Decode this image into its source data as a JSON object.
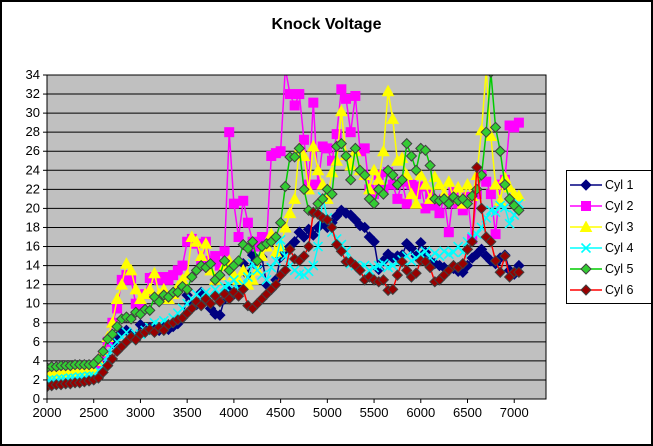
{
  "chart_data": {
    "type": "line",
    "title": "Knock Voltage",
    "xlabel": "",
    "ylabel": "",
    "xlim": [
      2000,
      7340
    ],
    "ylim": [
      0,
      34
    ],
    "x_ticks": [
      2000,
      2500,
      3000,
      3500,
      4000,
      4500,
      5000,
      5500,
      6000,
      6500,
      7000
    ],
    "y_ticks": [
      0,
      2,
      4,
      6,
      8,
      10,
      12,
      14,
      16,
      18,
      20,
      22,
      24,
      26,
      28,
      30,
      32,
      34
    ],
    "grid": "horizontal",
    "grid_color": "#000000",
    "plot_bg": "#C0C0C0",
    "axis_color": "#000000",
    "legend_position": "right",
    "x": [
      2000,
      2050,
      2100,
      2150,
      2200,
      2250,
      2300,
      2350,
      2400,
      2450,
      2500,
      2550,
      2600,
      2650,
      2700,
      2750,
      2800,
      2850,
      2900,
      2950,
      3000,
      3050,
      3100,
      3150,
      3200,
      3250,
      3300,
      3350,
      3400,
      3450,
      3500,
      3550,
      3600,
      3650,
      3700,
      3750,
      3800,
      3850,
      3900,
      3950,
      4000,
      4050,
      4100,
      4150,
      4200,
      4250,
      4300,
      4350,
      4400,
      4450,
      4500,
      4550,
      4600,
      4650,
      4700,
      4750,
      4800,
      4850,
      4900,
      4950,
      5000,
      5050,
      5100,
      5150,
      5200,
      5250,
      5300,
      5350,
      5400,
      5450,
      5500,
      5550,
      5600,
      5650,
      5700,
      5750,
      5800,
      5850,
      5900,
      5950,
      6000,
      6050,
      6100,
      6150,
      6200,
      6250,
      6300,
      6350,
      6400,
      6450,
      6500,
      6550,
      6600,
      6650,
      6700,
      6750,
      6800,
      6850,
      6900,
      6950,
      7000,
      7050
    ],
    "series": [
      {
        "name": "Cyl 1",
        "line_color": "#000080",
        "marker": "diamond",
        "marker_color": "#000080",
        "marker_stroke": "#000080",
        "values": [
          1.8,
          1.9,
          1.9,
          2.0,
          2.0,
          2.1,
          2.1,
          2.2,
          2.2,
          2.3,
          2.5,
          3.0,
          3.6,
          4.3,
          5.8,
          6.5,
          7.0,
          7.2,
          6.8,
          6.5,
          7.8,
          7.0,
          7.5,
          7.3,
          7.2,
          7.5,
          7.3,
          7.6,
          7.9,
          8.5,
          10.9,
          10.0,
          9.9,
          11.2,
          10.5,
          9.5,
          8.9,
          8.8,
          10.5,
          11.4,
          11.0,
          12.0,
          14.2,
          13.0,
          15.1,
          13.9,
          14.9,
          12.0,
          11.5,
          12.5,
          14.9,
          15.5,
          16.0,
          16.5,
          17.5,
          17.0,
          17.8,
          17.2,
          18.0,
          18.5,
          18.0,
          18.5,
          19.2,
          19.8,
          19.5,
          19.3,
          18.8,
          18.2,
          18.0,
          17.0,
          16.5,
          13.6,
          14.5,
          15.2,
          14.8,
          15.0,
          15.1,
          16.3,
          15.8,
          15.0,
          16.4,
          15.4,
          14.5,
          14.2,
          14.0,
          13.8,
          13.5,
          13.7,
          13.4,
          13.3,
          14.0,
          14.8,
          15.2,
          15.7,
          15.0,
          14.5,
          14.2,
          14.8,
          15.1,
          13.5,
          13.1,
          14.0
        ]
      },
      {
        "name": "Cyl 2",
        "line_color": "#FF00FF",
        "marker": "square",
        "marker_color": "#FF00FF",
        "marker_stroke": "#FF00FF",
        "values": [
          2.3,
          2.4,
          2.4,
          2.5,
          2.5,
          2.6,
          2.6,
          2.7,
          2.7,
          2.8,
          2.8,
          3.5,
          4.5,
          6.0,
          8.0,
          9.5,
          12.5,
          13.0,
          12.5,
          10.0,
          9.5,
          11.0,
          12.7,
          12.8,
          12.5,
          12.8,
          12.5,
          13.0,
          13.5,
          14.0,
          16.5,
          16.8,
          16.3,
          14.0,
          16.5,
          14.5,
          15.0,
          14.0,
          15.5,
          28.0,
          20.5,
          17.0,
          20.8,
          18.5,
          16.5,
          16.0,
          17.0,
          16.5,
          25.5,
          25.8,
          26.0,
          34.7,
          32.0,
          30.8,
          32.0,
          27.2,
          22.5,
          31.1,
          22.5,
          26.5,
          26.3,
          25.0,
          27.8,
          32.5,
          31.5,
          28.0,
          31.8,
          26.0,
          26.3,
          22.0,
          21.5,
          23.5,
          22.0,
          23.8,
          22.5,
          21.0,
          22.8,
          20.5,
          22.5,
          21.5,
          22.3,
          20.0,
          21.5,
          20.3,
          19.5,
          21.0,
          17.5,
          21.7,
          20.5,
          19.8,
          21.2,
          16.8,
          21.5,
          23.5,
          22.8,
          21.5,
          17.3,
          22.5,
          23.0,
          28.7,
          28.5,
          29.0
        ]
      },
      {
        "name": "Cyl 3",
        "line_color": "#FFFF00",
        "marker": "triangle",
        "marker_color": "#FFFF00",
        "marker_stroke": "#FFFF00",
        "values": [
          2.6,
          2.6,
          2.7,
          2.7,
          2.8,
          2.8,
          2.9,
          2.9,
          3.0,
          3.0,
          3.0,
          4.0,
          5.0,
          6.5,
          8.0,
          10.5,
          12.0,
          14.2,
          13.5,
          11.5,
          10.5,
          11.0,
          11.5,
          13.2,
          11.0,
          11.5,
          10.5,
          11.0,
          11.8,
          12.5,
          13.0,
          17.0,
          16.5,
          15.0,
          16.3,
          13.5,
          12.5,
          13.0,
          14.0,
          14.5,
          13.0,
          12.5,
          13.5,
          12.0,
          12.5,
          13.5,
          15.0,
          16.0,
          17.3,
          15.4,
          16.0,
          18.0,
          19.5,
          21.0,
          26.3,
          25.5,
          22.0,
          26.5,
          24.0,
          22.5,
          21.0,
          23.8,
          25.0,
          30.2,
          25.6,
          24.5,
          26.0,
          24.0,
          23.5,
          22.0,
          24.0,
          23.0,
          26.0,
          32.3,
          29.4,
          25.0,
          25.3,
          23.5,
          21.5,
          20.5,
          23.5,
          22.5,
          21.0,
          23.3,
          22.5,
          21.5,
          22.8,
          21.0,
          22.2,
          20.5,
          22.5,
          21.3,
          23.5,
          28.2,
          34.5,
          27.6,
          22.5,
          20.8,
          23.2,
          22.2,
          21.5,
          21.3
        ]
      },
      {
        "name": "Cyl 4",
        "line_color": "#00FFFF",
        "marker": "x",
        "marker_color": "#00FFFF",
        "marker_stroke": "#00FFFF",
        "values": [
          1.9,
          2.0,
          2.0,
          2.1,
          2.1,
          2.2,
          2.2,
          2.3,
          2.3,
          2.4,
          2.4,
          3.0,
          3.5,
          4.5,
          5.5,
          6.0,
          6.5,
          7.0,
          6.2,
          6.8,
          6.8,
          7.2,
          7.5,
          8.0,
          7.8,
          8.2,
          8.0,
          8.5,
          9.0,
          9.5,
          10.0,
          10.5,
          11.0,
          10.5,
          11.2,
          10.8,
          11.5,
          11.0,
          11.8,
          12.0,
          12.5,
          11.5,
          12.0,
          12.8,
          14.2,
          13.5,
          13.0,
          12.5,
          13.8,
          14.5,
          16.7,
          15.0,
          14.0,
          13.5,
          13.1,
          13.0,
          13.4,
          14.0,
          16.0,
          21.2,
          19.0,
          17.5,
          16.8,
          16.2,
          15.5,
          14.2,
          14.0,
          13.8,
          14.0,
          13.5,
          13.8,
          14.0,
          14.2,
          13.8,
          14.0,
          14.3,
          14.6,
          15.0,
          14.5,
          14.8,
          15.2,
          15.5,
          14.8,
          15.3,
          15.0,
          15.5,
          15.2,
          15.4,
          16.0,
          15.4,
          16.5,
          17.0,
          17.3,
          18.0,
          19.0,
          19.8,
          19.6,
          20.3,
          20.1,
          18.4,
          19.3,
          20.5
        ]
      },
      {
        "name": "Cyl 5",
        "line_color": "#00CC00",
        "marker": "diamond",
        "marker_color": "#33CC33",
        "marker_stroke": "#404040",
        "values": [
          3.3,
          3.4,
          3.4,
          3.5,
          3.5,
          3.5,
          3.6,
          3.6,
          3.6,
          3.6,
          3.7,
          4.2,
          5.0,
          6.3,
          6.8,
          7.6,
          8.4,
          8.6,
          8.4,
          9.1,
          8.9,
          9.4,
          9.3,
          10.7,
          10.2,
          10.9,
          10.7,
          11.2,
          11.2,
          11.8,
          11.5,
          12.8,
          13.5,
          14.0,
          13.8,
          14.2,
          12.5,
          13.0,
          14.5,
          13.5,
          14.0,
          14.5,
          16.2,
          15.8,
          16.5,
          14.5,
          16.0,
          16.3,
          16.5,
          17.0,
          18.5,
          22.3,
          25.4,
          25.4,
          26.3,
          22.0,
          19.8,
          19.5,
          20.5,
          21.0,
          22.0,
          21.5,
          26.5,
          26.8,
          25.5,
          23.0,
          26.3,
          24.0,
          23.5,
          21.0,
          20.5,
          22.0,
          21.5,
          24.0,
          23.5,
          22.5,
          23.0,
          26.8,
          25.5,
          24.0,
          26.3,
          26.1,
          24.5,
          21.0,
          20.8,
          21.0,
          20.5,
          21.2,
          20.8,
          21.0,
          20.5,
          21.3,
          22.0,
          23.5,
          28.0,
          34.3,
          28.5,
          26.0,
          22.5,
          21.0,
          20.3,
          19.8
        ]
      },
      {
        "name": "Cyl 6",
        "line_color": "#FF0000",
        "marker": "diamond",
        "marker_color": "#990000",
        "marker_stroke": "#404040",
        "values": [
          1.3,
          1.4,
          1.5,
          1.5,
          1.6,
          1.6,
          1.7,
          1.7,
          1.8,
          1.9,
          2.0,
          2.2,
          2.8,
          3.5,
          4.2,
          5.0,
          5.5,
          6.0,
          6.5,
          6.2,
          6.8,
          7.0,
          7.3,
          7.0,
          7.5,
          7.2,
          7.8,
          8.0,
          8.3,
          8.5,
          9.0,
          9.5,
          10.2,
          9.8,
          10.5,
          10.0,
          10.8,
          10.2,
          11.0,
          10.5,
          11.2,
          10.8,
          11.5,
          9.8,
          9.5,
          10.0,
          10.5,
          11.0,
          11.5,
          12.0,
          13.0,
          13.5,
          15.7,
          14.7,
          14.5,
          15.0,
          16.0,
          19.6,
          19.4,
          19.0,
          18.8,
          18.0,
          16.2,
          15.5,
          14.4,
          14.4,
          14.0,
          13.5,
          12.5,
          12.8,
          12.5,
          12.3,
          12.5,
          11.4,
          11.5,
          13.0,
          14.4,
          13.5,
          12.8,
          13.2,
          14.5,
          14.4,
          13.8,
          12.3,
          12.5,
          13.0,
          13.5,
          14.0,
          13.8,
          14.2,
          15.7,
          16.5,
          24.3,
          20.0,
          17.0,
          16.5,
          14.5,
          13.3,
          15.0,
          12.8,
          13.3,
          13.3
        ]
      }
    ]
  }
}
